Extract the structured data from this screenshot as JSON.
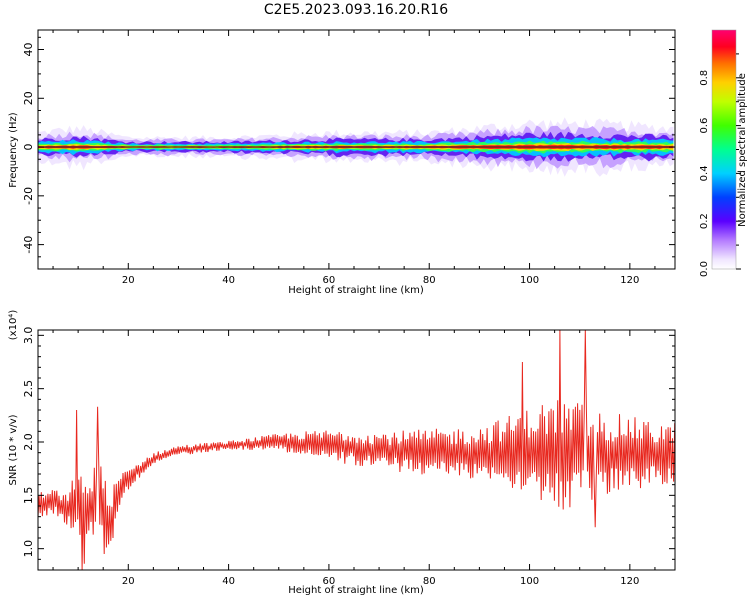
{
  "title": "C2E5.2023.093.16.20.R16",
  "chart_data": [
    {
      "type": "heatmap",
      "xlabel": "Height of straight line (km)",
      "ylabel": "Frequency (Hz)",
      "xlim": [
        2,
        129
      ],
      "ylim": [
        -50,
        48
      ],
      "xticks": [
        "20",
        "40",
        "60",
        "80",
        "100",
        "120"
      ],
      "yticks": [
        "-40",
        "-20",
        "0",
        "20",
        "40"
      ],
      "colorbar": {
        "label": "Normalized spectral amplitude",
        "range": [
          0,
          1
        ],
        "ticks": [
          "0.0",
          "0.2",
          "0.4",
          "0.6",
          "0.8"
        ]
      },
      "description_values": {
        "peak_frequency_hz": 0,
        "band_halfwidth_hz_by_height": [
          [
            2,
            3
          ],
          [
            10,
            4
          ],
          [
            20,
            2
          ],
          [
            40,
            2
          ],
          [
            60,
            3
          ],
          [
            80,
            3
          ],
          [
            100,
            5
          ],
          [
            110,
            5
          ],
          [
            129,
            4
          ]
        ]
      },
      "grid": false,
      "legend": "right"
    },
    {
      "type": "line",
      "xlabel": "Height of straight line (km)",
      "ylabel": "SNR (10 * v/v)",
      "y_multiplier": "(x10⁴)",
      "xlim": [
        2,
        129
      ],
      "ylim": [
        0.8,
        3.05
      ],
      "xticks": [
        "20",
        "40",
        "60",
        "80",
        "100",
        "120"
      ],
      "yticks": [
        "1.0",
        "1.5",
        "2.0",
        "2.5",
        "3.0"
      ],
      "series": [
        {
          "color": "#e8281f",
          "envelope": {
            "x": [
              2,
              5,
              8,
              10,
              11,
              12,
              14,
              16,
              18,
              20,
              25,
              30,
              40,
              50,
              60,
              70,
              80,
              90,
              100,
              105,
              110,
              115,
              120,
              125,
              129
            ],
            "center": [
              1.4,
              1.45,
              1.35,
              1.5,
              1.2,
              1.3,
              1.55,
              1.2,
              1.5,
              1.65,
              1.85,
              1.92,
              1.97,
              2.0,
              1.97,
              1.92,
              1.9,
              1.9,
              1.92,
              1.88,
              1.88,
              1.88,
              1.9,
              1.88,
              1.9
            ],
            "spread": [
              0.12,
              0.12,
              0.15,
              0.35,
              0.4,
              0.3,
              0.45,
              0.3,
              0.2,
              0.1,
              0.05,
              0.05,
              0.04,
              0.08,
              0.15,
              0.18,
              0.22,
              0.25,
              0.4,
              0.55,
              0.5,
              0.4,
              0.35,
              0.3,
              0.3
            ]
          },
          "peaks": [
            {
              "x": 9.8,
              "y": 2.3
            },
            {
              "x": 10.8,
              "y": 0.8
            },
            {
              "x": 13.8,
              "y": 2.33
            },
            {
              "x": 15.2,
              "y": 0.95
            },
            {
              "x": 98.6,
              "y": 2.75
            },
            {
              "x": 106,
              "y": 3.05
            },
            {
              "x": 111.2,
              "y": 3.05
            },
            {
              "x": 113,
              "y": 1.2
            }
          ]
        }
      ],
      "grid": false
    }
  ],
  "colors": {
    "line": "#e8281f",
    "axis": "#000000",
    "background": "#ffffff"
  }
}
